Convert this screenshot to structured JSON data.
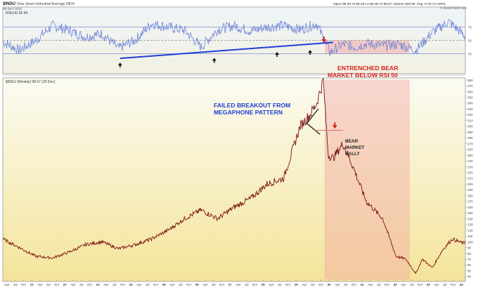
{
  "header": {
    "symbol": "$INDU",
    "name": "Dow Jones Industrial Average INDX",
    "date": "29-Dec-1933",
    "stats": "Open 95.30  Hi 99.29  Lo 95.30  Cl 98.67  Volume 500.0K  Chg -0.20 (-0.20%)",
    "source": "© StockCharts.com"
  },
  "rsi_panel": {
    "label": "RSI(14) 55.94",
    "levels": [
      70,
      50,
      30
    ]
  },
  "price_panel": {
    "label": "$INDU (Weekly) 98.67 (29 Dec)"
  },
  "annotations": {
    "bear_market": [
      "ENTRENCHED BEAR",
      "MARKET BELOW RSI 50"
    ],
    "breakout": [
      "FAILED BREAKOUT FROM",
      "MEGAPHONE PATTERN"
    ],
    "rally": [
      "BEAR",
      "MARKET",
      "RALLY"
    ]
  },
  "colors": {
    "rsi_line": "#6f84d8",
    "trendline": "#1f3fd6",
    "price": "#7a1010",
    "bear_zone": "#f3aaa5",
    "annotation_red": "#d6241c",
    "annotation_blue": "#1f3fd6",
    "bg_top": "#f7f7ec",
    "bg_bottom": "#f4e49a"
  },
  "chart_data": [
    {
      "type": "line",
      "title": "RSI(14)",
      "value": 55.94,
      "ylim": [
        0,
        100
      ],
      "reference_lines": [
        70,
        50,
        30
      ],
      "x": [
        1920.0,
        1920.5,
        1921.0,
        1921.5,
        1922.0,
        1922.5,
        1923.0,
        1923.5,
        1924.0,
        1924.5,
        1925.0,
        1925.5,
        1926.0,
        1926.5,
        1927.0,
        1927.5,
        1928.0,
        1928.5,
        1929.0,
        1929.5,
        1929.9,
        1930.3,
        1930.7,
        1931.0,
        1931.5,
        1932.0,
        1932.5,
        1933.0,
        1933.5,
        1934.0
      ],
      "y": [
        48,
        35,
        50,
        72,
        65,
        55,
        60,
        38,
        50,
        75,
        70,
        65,
        40,
        66,
        72,
        64,
        70,
        72,
        66,
        75,
        32,
        44,
        40,
        45,
        42,
        44,
        35,
        62,
        78,
        56
      ]
    },
    {
      "type": "line",
      "title": "$INDU (Weekly)",
      "value": 98.67,
      "xlim": [
        1920,
        1934
      ],
      "ylim": [
        35,
        380
      ],
      "x_ticks": [
        "Apr",
        "Jul",
        "Oct",
        "21",
        "Apr",
        "Jul",
        "Oct",
        "22",
        "Apr",
        "Jul",
        "Oct",
        "23",
        "Apr",
        "Jul",
        "Oct",
        "24",
        "Apr",
        "Jul",
        "Oct",
        "25",
        "Apr",
        "Jul",
        "Oct",
        "26",
        "Apr",
        "Jul",
        "Oct",
        "27",
        "Apr",
        "Jul",
        "Oct",
        "28",
        "Apr",
        "Jul",
        "Oct",
        "29",
        "Apr",
        "Jul",
        "Oct",
        "30",
        "Apr",
        "Jul",
        "Oct",
        "31",
        "Apr",
        "Jul",
        "Oct",
        "32",
        "Apr",
        "Jul",
        "Oct",
        "33",
        "Apr",
        "Jul",
        "Oct",
        "34"
      ],
      "y_ticks": [
        380,
        370,
        360,
        350,
        340,
        330,
        320,
        310,
        300,
        290,
        280,
        270,
        260,
        250,
        240,
        230,
        220,
        210,
        200,
        190,
        180,
        170,
        160,
        150,
        140,
        130,
        120,
        110,
        100,
        90,
        80,
        70,
        60,
        50,
        40
      ],
      "x": [
        1920.0,
        1920.5,
        1921.0,
        1921.5,
        1922.0,
        1922.5,
        1923.0,
        1923.5,
        1924.0,
        1924.5,
        1925.0,
        1925.5,
        1926.0,
        1926.5,
        1927.0,
        1927.5,
        1928.0,
        1928.5,
        1929.0,
        1929.3,
        1929.5,
        1929.7,
        1929.85,
        1930.0,
        1930.3,
        1930.6,
        1931.0,
        1931.5,
        1931.9,
        1932.2,
        1932.5,
        1932.7,
        1933.0,
        1933.3,
        1933.6,
        1933.9
      ],
      "y": [
        105,
        90,
        75,
        72,
        82,
        95,
        100,
        88,
        95,
        105,
        120,
        140,
        155,
        140,
        160,
        175,
        200,
        210,
        300,
        320,
        340,
        380,
        250,
        245,
        270,
        230,
        170,
        140,
        75,
        70,
        45,
        70,
        55,
        85,
        105,
        98
      ]
    }
  ]
}
